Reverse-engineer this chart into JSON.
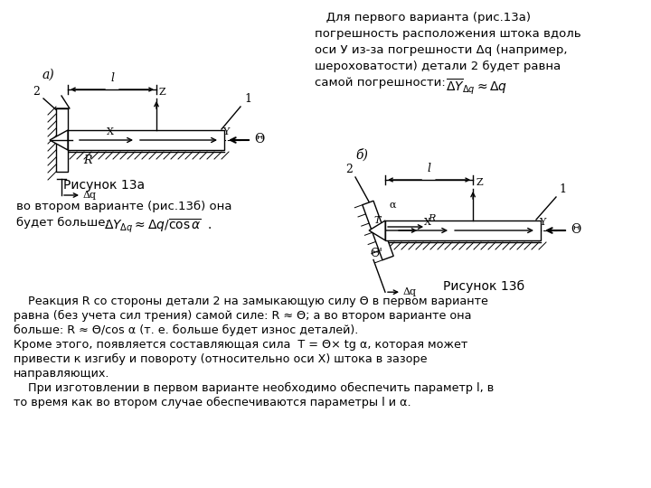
{
  "bg_color": "#ffffff",
  "fig_a_label": "а)",
  "fig_b_label": "б)",
  "caption_a": "Рисунок 13а",
  "caption_b": "Рисунок 13б",
  "top_right_line1": "   Для первого варианта (рис.13а)",
  "top_right_line2": "погрешность расположения штока вдоль",
  "top_right_line3": "оси У из-за погрешности Δq (например,",
  "top_right_line4": "шероховатости) детали 2 будет равна",
  "top_right_line5": "самой погрешности:  ",
  "bottom_left_text1": "во втором варианте (рис.13б) она",
  "bottom_left_text2": "будет больше:  ",
  "bottom_text_line1": "    Реакция R со стороны детали 2 на замыкающую силу Θ в первом варианте",
  "bottom_text_line2": "равна (без учета сил трения) самой силе: R ≈ Θ; а во втором варианте она",
  "bottom_text_line3": "больше: R ≈ Θ/cos α (т. е. больше будет износ деталей).",
  "bottom_text_line4": "Кроме этого, появляется составляющая сила  T = Θ× tg α, которая может",
  "bottom_text_line5": "привести к изгибу и повороту (относительно оси Х) штока в зазоре",
  "bottom_text_line6": "направляющих.",
  "bottom_text_line7": "    При изготовлении в первом варианте необходимо обеспечить параметр l, в",
  "bottom_text_line8": "то время как во втором случае обеспечиваются параметры l и α."
}
